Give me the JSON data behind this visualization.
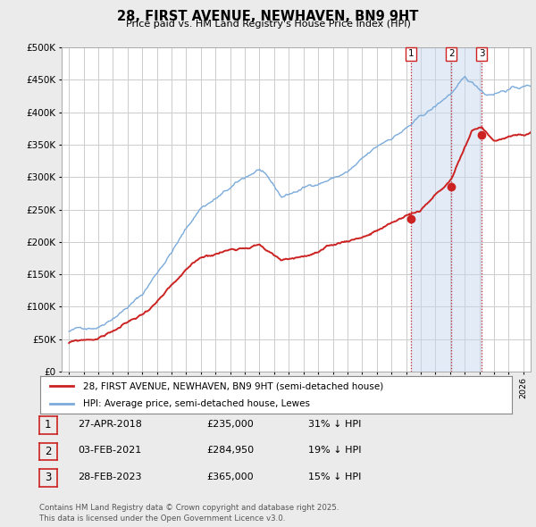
{
  "title": "28, FIRST AVENUE, NEWHAVEN, BN9 9HT",
  "subtitle": "Price paid vs. HM Land Registry's House Price Index (HPI)",
  "ylim": [
    0,
    500000
  ],
  "yticks": [
    0,
    50000,
    100000,
    150000,
    200000,
    250000,
    300000,
    350000,
    400000,
    450000,
    500000
  ],
  "ytick_labels": [
    "£0",
    "£50K",
    "£100K",
    "£150K",
    "£200K",
    "£250K",
    "£300K",
    "£350K",
    "£400K",
    "£450K",
    "£500K"
  ],
  "xlim_start": 1994.5,
  "xlim_end": 2026.5,
  "background_color": "#ebebeb",
  "plot_bg_color": "#ffffff",
  "grid_color": "#cccccc",
  "hpi_color": "#7aabdb",
  "price_color": "#cc2222",
  "vline_color": "#cc2222",
  "transactions": [
    {
      "num": 1,
      "date": "27-APR-2018",
      "price": 235000,
      "pct": "31%",
      "x": 2018.32
    },
    {
      "num": 2,
      "date": "03-FEB-2021",
      "price": 284950,
      "pct": "19%",
      "x": 2021.09
    },
    {
      "num": 3,
      "date": "28-FEB-2023",
      "price": 365000,
      "pct": "15%",
      "x": 2023.16
    }
  ],
  "legend_line1": "28, FIRST AVENUE, NEWHAVEN, BN9 9HT (semi-detached house)",
  "legend_line2": "HPI: Average price, semi-detached house, Lewes",
  "footnote": "Contains HM Land Registry data © Crown copyright and database right 2025.\nThis data is licensed under the Open Government Licence v3.0."
}
